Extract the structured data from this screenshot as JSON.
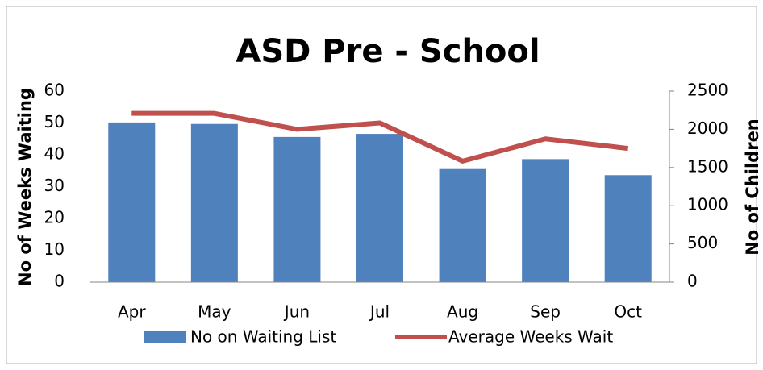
{
  "chart_data": {
    "type": "bar_line",
    "title": "ASD Pre - School",
    "ylabel": "No of Weeks Waiting",
    "y2label": "No of Children",
    "categories": [
      "Apr",
      "May",
      "Jun",
      "Jul",
      "Aug",
      "Sep",
      "Oct"
    ],
    "series": [
      {
        "name": "No on Waiting List",
        "type": "bar",
        "axis": "y2",
        "color": "#4f81bd",
        "values": [
          2090,
          2070,
          1900,
          1940,
          1480,
          1610,
          1400
        ]
      },
      {
        "name": "Average Weeks Wait",
        "type": "line",
        "axis": "y",
        "color": "#c0504d",
        "values": [
          53,
          53,
          48,
          50,
          38,
          45,
          42
        ]
      }
    ],
    "ylim": [
      0,
      60
    ],
    "yticks": [
      0,
      10,
      20,
      30,
      40,
      50,
      60
    ],
    "y2lim": [
      0,
      2500
    ],
    "y2ticks": [
      0,
      500,
      1000,
      1500,
      2000,
      2500
    ]
  }
}
